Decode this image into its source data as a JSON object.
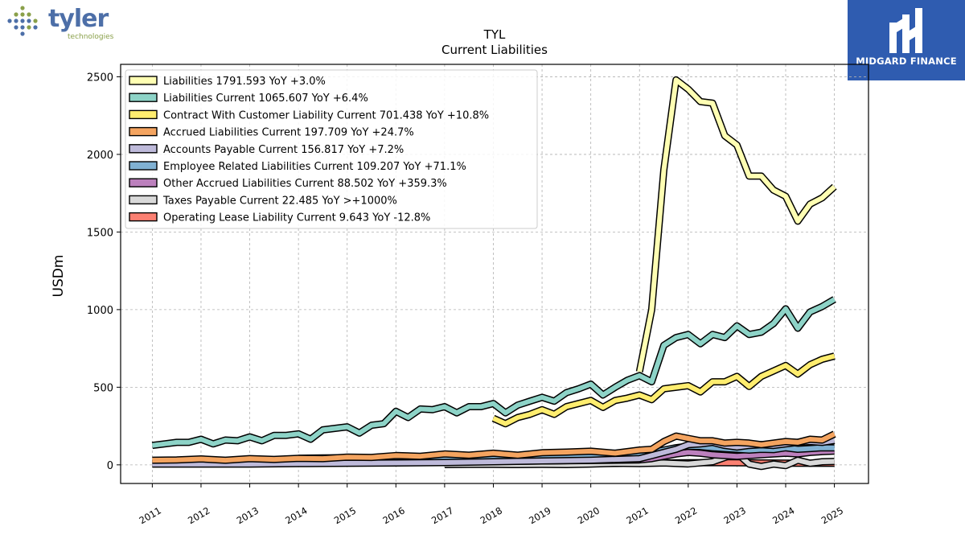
{
  "logos": {
    "left_brand": "tyler",
    "left_sub": "technologies",
    "right_caption": "MIDGARD FINANCE"
  },
  "chart_data": {
    "type": "line",
    "title": "TYL",
    "subtitle": "Current  Liabilities",
    "ylabel": "USDm",
    "xlabel": "",
    "ylim": [
      -120,
      2580
    ],
    "xlim": [
      2010.35,
      2025.7
    ],
    "yticks": [
      0,
      500,
      1000,
      1500,
      2000,
      2500
    ],
    "xticks": [
      2011,
      2012,
      2013,
      2014,
      2015,
      2016,
      2017,
      2018,
      2019,
      2020,
      2021,
      2022,
      2023,
      2024,
      2025
    ],
    "grid": true,
    "legend_position": "top-left",
    "series": [
      {
        "name": "Liabilities",
        "legend": "Liabilities  1791.593 YoY +3.0%",
        "color": "#ffffb3",
        "x": [
          2021.0,
          2021.25,
          2021.5,
          2021.75,
          2022.0,
          2022.25,
          2022.5,
          2022.75,
          2023.0,
          2023.25,
          2023.5,
          2023.75,
          2024.0,
          2024.25,
          2024.5,
          2024.75,
          2025.0
        ],
        "values": [
          600,
          1000,
          1900,
          2480,
          2420,
          2340,
          2330,
          2120,
          2060,
          1860,
          1860,
          1770,
          1730,
          1570,
          1680,
          1720,
          1792
        ]
      },
      {
        "name": "Liabilities Current",
        "legend": "Liabilities Current  1065.607 YoY +6.4%",
        "color": "#8dd3c7",
        "x": [
          2011.0,
          2011.25,
          2011.5,
          2011.75,
          2012.0,
          2012.25,
          2012.5,
          2012.75,
          2013.0,
          2013.25,
          2013.5,
          2013.75,
          2014.0,
          2014.25,
          2014.5,
          2014.75,
          2015.0,
          2015.25,
          2015.5,
          2015.75,
          2016.0,
          2016.25,
          2016.5,
          2016.75,
          2017.0,
          2017.25,
          2017.5,
          2017.75,
          2018.0,
          2018.25,
          2018.5,
          2018.75,
          2019.0,
          2019.25,
          2019.5,
          2019.75,
          2020.0,
          2020.25,
          2020.5,
          2020.75,
          2021.0,
          2021.25,
          2021.5,
          2021.75,
          2022.0,
          2022.25,
          2022.5,
          2022.75,
          2023.0,
          2023.25,
          2023.5,
          2023.75,
          2024.0,
          2024.25,
          2024.5,
          2024.75,
          2025.0
        ],
        "values": [
          125,
          135,
          145,
          145,
          165,
          135,
          160,
          155,
          180,
          155,
          190,
          190,
          200,
          165,
          225,
          235,
          245,
          205,
          255,
          265,
          345,
          305,
          360,
          355,
          375,
          335,
          375,
          375,
          395,
          335,
          385,
          410,
          435,
          410,
          465,
          490,
          520,
          450,
          500,
          545,
          575,
          535,
          770,
          820,
          840,
          780,
          840,
          820,
          895,
          840,
          855,
          910,
          1005,
          880,
          985,
          1020,
          1066
        ]
      },
      {
        "name": "Contract With Customer Liability Current",
        "legend": "Contract With Customer Liability Current  701.438 YoY +10.8%",
        "color": "#ffed6f",
        "x": [
          2018.0,
          2018.25,
          2018.5,
          2018.75,
          2019.0,
          2019.25,
          2019.5,
          2019.75,
          2020.0,
          2020.25,
          2020.5,
          2020.75,
          2021.0,
          2021.25,
          2021.5,
          2021.75,
          2022.0,
          2022.25,
          2022.5,
          2022.75,
          2023.0,
          2023.25,
          2023.5,
          2023.75,
          2024.0,
          2024.25,
          2024.5,
          2024.75,
          2025.0
        ],
        "values": [
          300,
          265,
          305,
          325,
          355,
          325,
          375,
          395,
          415,
          370,
          415,
          430,
          450,
          420,
          490,
          500,
          510,
          470,
          535,
          535,
          570,
          505,
          570,
          605,
          640,
          585,
          645,
          680,
          701
        ]
      },
      {
        "name": "Accrued Liabilities Current",
        "legend": "Accrued Liabilities Current  197.709 YoY +24.7%",
        "color": "#f4a460",
        "x": [
          2011.0,
          2011.5,
          2012.0,
          2012.5,
          2013.0,
          2013.5,
          2014.0,
          2014.5,
          2015.0,
          2015.5,
          2016.0,
          2016.5,
          2017.0,
          2017.5,
          2018.0,
          2018.5,
          2019.0,
          2019.5,
          2020.0,
          2020.5,
          2021.0,
          2021.25,
          2021.5,
          2021.75,
          2022.0,
          2022.25,
          2022.5,
          2022.75,
          2023.0,
          2023.25,
          2023.5,
          2023.75,
          2024.0,
          2024.25,
          2024.5,
          2024.75,
          2025.0
        ],
        "values": [
          30,
          32,
          38,
          30,
          40,
          35,
          42,
          40,
          50,
          48,
          60,
          55,
          70,
          62,
          75,
          62,
          78,
          82,
          88,
          75,
          95,
          100,
          150,
          185,
          170,
          155,
          155,
          140,
          145,
          140,
          130,
          140,
          150,
          145,
          165,
          160,
          198
        ]
      },
      {
        "name": "Accounts Payable Current",
        "legend": "Accounts Payable Current  156.817 YoY +7.2%",
        "color": "#bebada",
        "x": [
          2011.0,
          2012.0,
          2013.0,
          2014.0,
          2015.0,
          2016.0,
          2017.0,
          2018.0,
          2019.0,
          2020.0,
          2021.0,
          2021.25,
          2021.5,
          2021.75,
          2022.0,
          2022.25,
          2022.5,
          2022.75,
          2023.0,
          2023.25,
          2023.5,
          2023.75,
          2024.0,
          2024.25,
          2024.5,
          2024.75,
          2025.0
        ],
        "values": [
          5,
          5,
          5,
          8,
          10,
          12,
          15,
          20,
          25,
          30,
          40,
          60,
          80,
          100,
          130,
          135,
          145,
          125,
          115,
          125,
          130,
          125,
          135,
          145,
          150,
          145,
          157
        ]
      },
      {
        "name": "Employee Related Liabilities Current",
        "legend": "Employee Related Liabilities Current  109.207 YoY +71.1%",
        "color": "#80b1d3",
        "x": [
          2014.0,
          2014.5,
          2015.0,
          2015.5,
          2016.0,
          2016.5,
          2017.0,
          2017.5,
          2018.0,
          2018.5,
          2019.0,
          2019.5,
          2020.0,
          2020.5,
          2021.0,
          2021.25,
          2021.5,
          2021.75,
          2022.0,
          2022.25,
          2022.5,
          2022.75,
          2023.0,
          2023.25,
          2023.5,
          2023.75,
          2024.0,
          2024.25,
          2024.5,
          2024.75,
          2025.0
        ],
        "values": [
          42,
          45,
          46,
          44,
          48,
          50,
          52,
          50,
          55,
          53,
          58,
          58,
          62,
          58,
          65,
          80,
          95,
          110,
          120,
          118,
          110,
          105,
          100,
          95,
          100,
          98,
          110,
          100,
          105,
          110,
          109
        ]
      },
      {
        "name": "Other Accrued Liabilities Current",
        "legend": "Other Accrued Liabilities Current  88.502 YoY +359.3%",
        "color": "#bc80bd",
        "x": [
          2011.0,
          2012.0,
          2013.0,
          2014.0,
          2015.0,
          2016.0,
          2017.0,
          2018.0,
          2019.0,
          2020.0,
          2021.0,
          2021.25,
          2021.5,
          2021.75,
          2022.0,
          2022.25,
          2022.5,
          2022.75,
          2023.0,
          2023.25,
          2023.5,
          2023.75,
          2024.0,
          2024.25,
          2024.5,
          2024.75,
          2025.0
        ],
        "values": [
          10,
          10,
          12,
          12,
          15,
          18,
          20,
          22,
          25,
          28,
          32,
          40,
          55,
          70,
          80,
          75,
          65,
          60,
          55,
          60,
          65,
          70,
          75,
          70,
          80,
          85,
          89
        ]
      },
      {
        "name": "Taxes Payable Current",
        "legend": "Taxes Payable Current  22.485 YoY >+1000%",
        "color": "#d9d9d9",
        "x": [
          2017.0,
          2017.5,
          2018.0,
          2018.5,
          2019.0,
          2019.5,
          2020.0,
          2020.5,
          2021.0,
          2021.5,
          2022.0,
          2022.5,
          2023.0,
          2023.25,
          2023.5,
          2023.75,
          2024.0,
          2024.25,
          2024.5,
          2024.75,
          2025.0
        ],
        "values": [
          2,
          3,
          3,
          2,
          3,
          2,
          5,
          10,
          8,
          12,
          6,
          20,
          75,
          5,
          -10,
          5,
          -5,
          30,
          10,
          20,
          22
        ]
      },
      {
        "name": "Operating Lease Liability Current",
        "legend": "Operating Lease Liability Current  9.643 YoY -12.8%",
        "color": "#fb8072",
        "x": [
          2019.0,
          2019.5,
          2020.0,
          2020.5,
          2021.0,
          2021.5,
          2022.0,
          2022.5,
          2023.0,
          2023.5,
          2024.0,
          2024.5,
          2025.0
        ],
        "values": [
          5,
          8,
          10,
          9,
          11,
          12,
          13,
          14,
          13,
          12,
          11,
          10,
          10
        ]
      }
    ]
  }
}
